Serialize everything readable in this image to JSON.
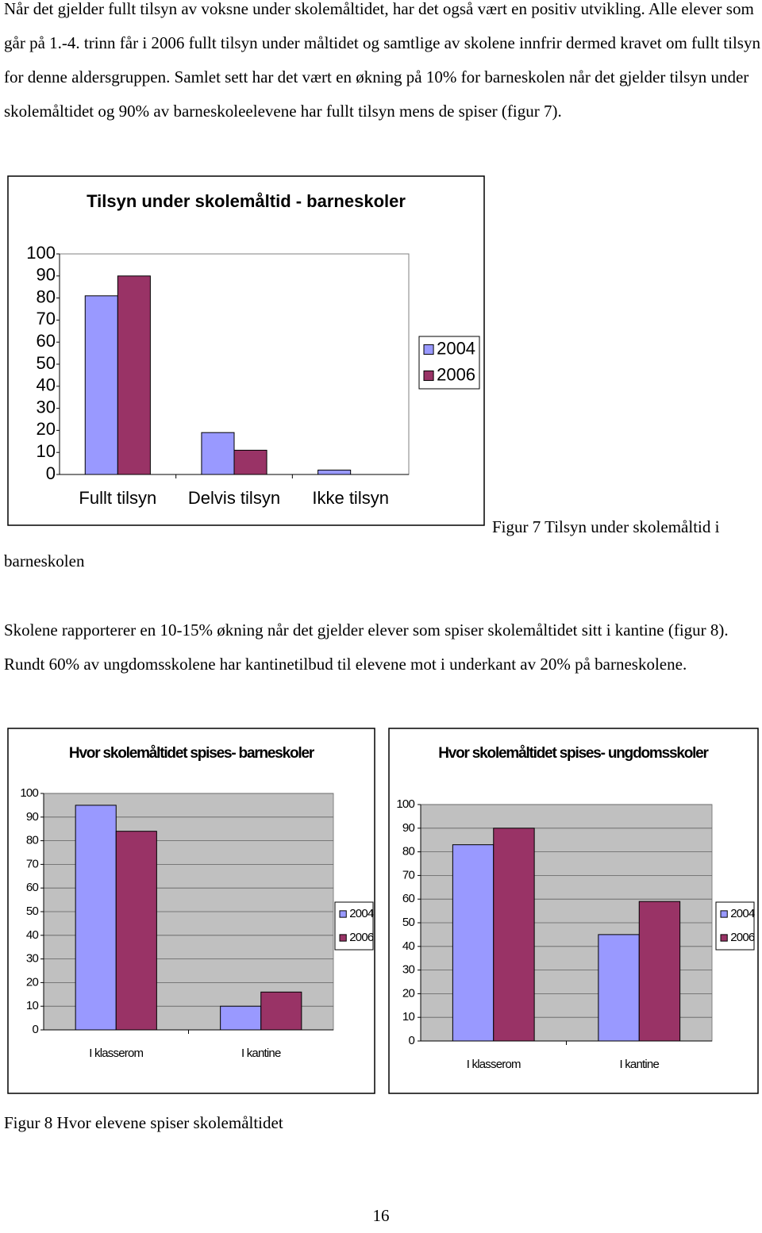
{
  "paragraphs": [
    "Når det gjelder fullt tilsyn av voksne under skolemåltidet, har det også vært en positiv utvikling.  Alle elever som går på 1.-4. trinn får i 2006 fullt tilsyn under måltidet og samtlige av skolene innfrir dermed kravet om fullt tilsyn for denne aldersgruppen. Samlet sett har det vært en økning på 10% for barneskolen når det gjelder tilsyn under skolemåltidet og 90% av barneskoleelevene har fullt tilsyn mens de spiser (figur 7).",
    "Skolene rapporterer en 10-15% økning når det gjelder elever som spiser skolemåltidet sitt i kantine (figur 8). Rundt 60% av ungdomsskolene har kantinetilbud til elevene mot i underkant av 20% på barneskolene."
  ],
  "figure7_caption": "Figur 7 Tilsyn under skolemåltid i barneskolen",
  "figure8_caption": "Figur 8 Hvor elevene spiser skolemåltidet",
  "page_number": "16",
  "chart_data": [
    {
      "type": "bar",
      "title": "Tilsyn under skolemåltid - barneskoler",
      "categories": [
        "Fullt tilsyn",
        "Delvis tilsyn",
        "Ikke tilsyn"
      ],
      "series": [
        {
          "name": "2004",
          "color": "#9999ff",
          "values": [
            81,
            19,
            2
          ]
        },
        {
          "name": "2006",
          "color": "#993366",
          "values": [
            90,
            11,
            0
          ]
        }
      ],
      "ylim": [
        0,
        100
      ],
      "yticks": [
        0,
        10,
        20,
        30,
        40,
        50,
        60,
        70,
        80,
        90,
        100
      ],
      "grid": false,
      "legend": "right"
    },
    {
      "type": "bar",
      "title": "Hvor skolemåltidet spises- barneskoler",
      "categories": [
        "I klasserom",
        "I kantine"
      ],
      "series": [
        {
          "name": "2004",
          "color": "#9999ff",
          "values": [
            95,
            10
          ]
        },
        {
          "name": "2006",
          "color": "#993366",
          "values": [
            84,
            16
          ]
        }
      ],
      "ylim": [
        0,
        100
      ],
      "yticks": [
        0,
        10,
        20,
        30,
        40,
        50,
        60,
        70,
        80,
        90,
        100
      ],
      "grid": true,
      "legend": "right"
    },
    {
      "type": "bar",
      "title": "Hvor skolemåltidet spises- ungdomsskoler",
      "categories": [
        "I klasserom",
        "I kantine"
      ],
      "series": [
        {
          "name": "2004",
          "color": "#9999ff",
          "values": [
            83,
            45
          ]
        },
        {
          "name": "2006",
          "color": "#993366",
          "values": [
            90,
            59
          ]
        }
      ],
      "ylim": [
        0,
        100
      ],
      "yticks": [
        0,
        10,
        20,
        30,
        40,
        50,
        60,
        70,
        80,
        90,
        100
      ],
      "grid": true,
      "legend": "right"
    }
  ]
}
